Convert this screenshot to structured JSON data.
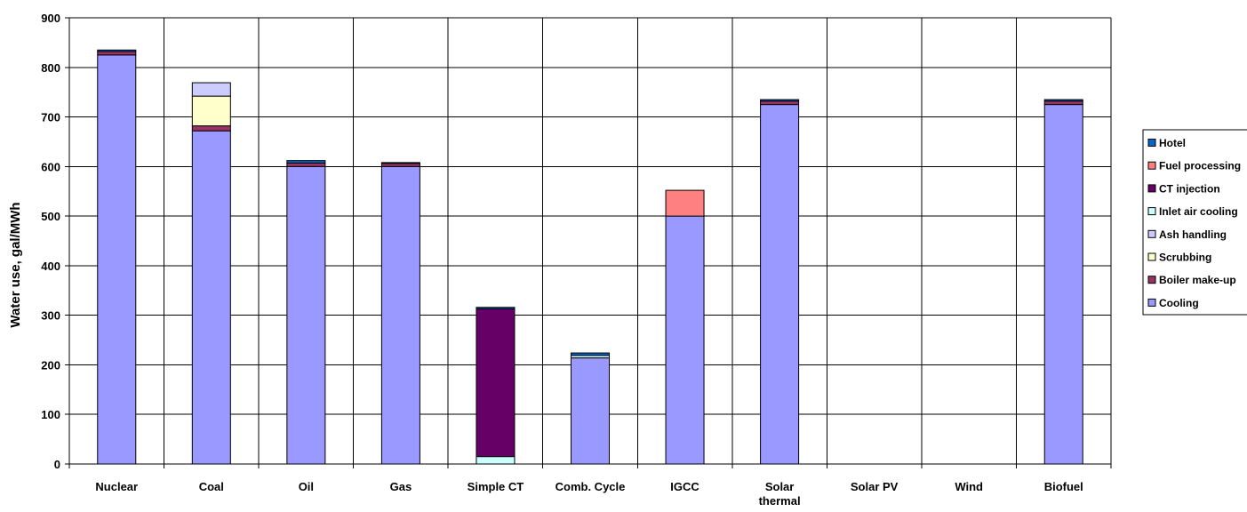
{
  "chart_data": {
    "type": "bar",
    "stacked": true,
    "title": "",
    "xlabel": "",
    "ylabel": "Water use, gal/MWh",
    "ylim": [
      0,
      900
    ],
    "yticks": [
      0,
      100,
      200,
      300,
      400,
      500,
      600,
      700,
      800,
      900
    ],
    "grid": true,
    "legend_position": "right",
    "categories": [
      "Nuclear",
      "Coal",
      "Oil",
      "Gas",
      "Simple CT",
      "Comb. Cycle",
      "IGCC",
      "Solar thermal",
      "Solar PV",
      "Wind",
      "Biofuel"
    ],
    "category_lines": [
      [
        "Nuclear"
      ],
      [
        "Coal"
      ],
      [
        "Oil"
      ],
      [
        "Gas"
      ],
      [
        "Simple CT"
      ],
      [
        "Comb. Cycle"
      ],
      [
        "IGCC"
      ],
      [
        "Solar",
        "thermal"
      ],
      [
        "Solar PV"
      ],
      [
        "Wind"
      ],
      [
        "Biofuel"
      ]
    ],
    "series": [
      {
        "name": "Cooling",
        "color": "#9999ff",
        "values": [
          825,
          672,
          600,
          600,
          0,
          214,
          500,
          725,
          0,
          0,
          725
        ]
      },
      {
        "name": "Boiler make-up",
        "color": "#993366",
        "values": [
          7,
          10,
          7,
          6,
          0,
          0,
          0,
          7,
          0,
          0,
          7
        ]
      },
      {
        "name": "Scrubbing",
        "color": "#ffffcc",
        "values": [
          0,
          60,
          0,
          0,
          0,
          0,
          0,
          0,
          0,
          0,
          0
        ]
      },
      {
        "name": "Ash handling",
        "color": "#ccccff",
        "values": [
          0,
          27,
          0,
          0,
          0,
          0,
          0,
          0,
          0,
          0,
          0
        ]
      },
      {
        "name": "Inlet air cooling",
        "color": "#ccffff",
        "values": [
          0,
          0,
          0,
          0,
          15,
          5,
          0,
          0,
          0,
          0,
          0
        ]
      },
      {
        "name": "CT injection",
        "color": "#660066",
        "values": [
          0,
          0,
          0,
          0,
          298,
          0,
          0,
          0,
          0,
          0,
          0
        ]
      },
      {
        "name": "Fuel processing",
        "color": "#ff8080",
        "values": [
          0,
          0,
          0,
          0,
          0,
          0,
          52,
          0,
          0,
          0,
          0
        ]
      },
      {
        "name": "Hotel",
        "color": "#0066cc",
        "values": [
          3,
          0,
          5,
          2,
          3,
          5,
          0,
          3,
          0,
          0,
          3
        ]
      }
    ],
    "legend_order": [
      "Hotel",
      "Fuel processing",
      "CT injection",
      "Inlet air cooling",
      "Ash handling",
      "Scrubbing",
      "Boiler make-up",
      "Cooling"
    ]
  }
}
